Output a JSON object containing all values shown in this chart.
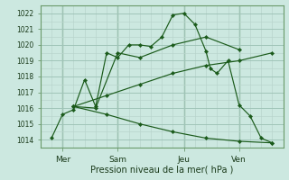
{
  "xlabel": "Pression niveau de la mer( hPa )",
  "bg_color": "#cce8e0",
  "minor_grid_color": "#b8d4cc",
  "major_grid_color": "#a0c4b8",
  "day_line_color": "#6a9a6a",
  "line_color": "#1a5a1a",
  "ylim": [
    1013.5,
    1022.5
  ],
  "xlim": [
    -0.5,
    10.5
  ],
  "yticks": [
    1014,
    1015,
    1016,
    1017,
    1018,
    1019,
    1020,
    1021,
    1022
  ],
  "xtick_labels": [
    "Mer",
    "Sam",
    "Jeu",
    "Ven"
  ],
  "xtick_positions": [
    0.5,
    3.0,
    6.0,
    8.5
  ],
  "series": [
    [
      1014.1,
      1015.6,
      1015.9,
      1017.8,
      1016.1,
      1019.5,
      1019.2,
      1020.0,
      1020.0,
      1019.9,
      1020.5,
      1021.9,
      1022.0,
      1021.3,
      1019.6,
      1018.5,
      1018.2,
      1019.0,
      1016.2,
      1015.5,
      1014.1,
      1013.8
    ],
    [
      1016.1,
      1016.0,
      1019.5,
      1019.2,
      1020.0,
      1020.5,
      1019.7
    ],
    [
      1016.1,
      1016.8,
      1017.5,
      1018.2,
      1018.7,
      1019.0,
      1019.5
    ],
    [
      1016.1,
      1015.6,
      1015.0,
      1014.5,
      1014.1,
      1013.9,
      1013.8
    ]
  ],
  "series_x": [
    [
      0.0,
      0.5,
      1.0,
      1.5,
      2.0,
      2.5,
      3.0,
      3.5,
      4.0,
      4.5,
      5.0,
      5.5,
      6.0,
      6.5,
      7.0,
      7.2,
      7.5,
      8.0,
      8.5,
      9.0,
      9.5,
      10.0
    ],
    [
      1.0,
      2.0,
      3.0,
      4.0,
      5.5,
      7.0,
      8.5
    ],
    [
      1.0,
      2.5,
      4.0,
      5.5,
      7.0,
      8.5,
      10.0
    ],
    [
      1.0,
      2.5,
      4.0,
      5.5,
      7.0,
      8.5,
      10.0
    ]
  ],
  "ytick_fontsize": 5.5,
  "xtick_fontsize": 6.5,
  "xlabel_fontsize": 7.0
}
